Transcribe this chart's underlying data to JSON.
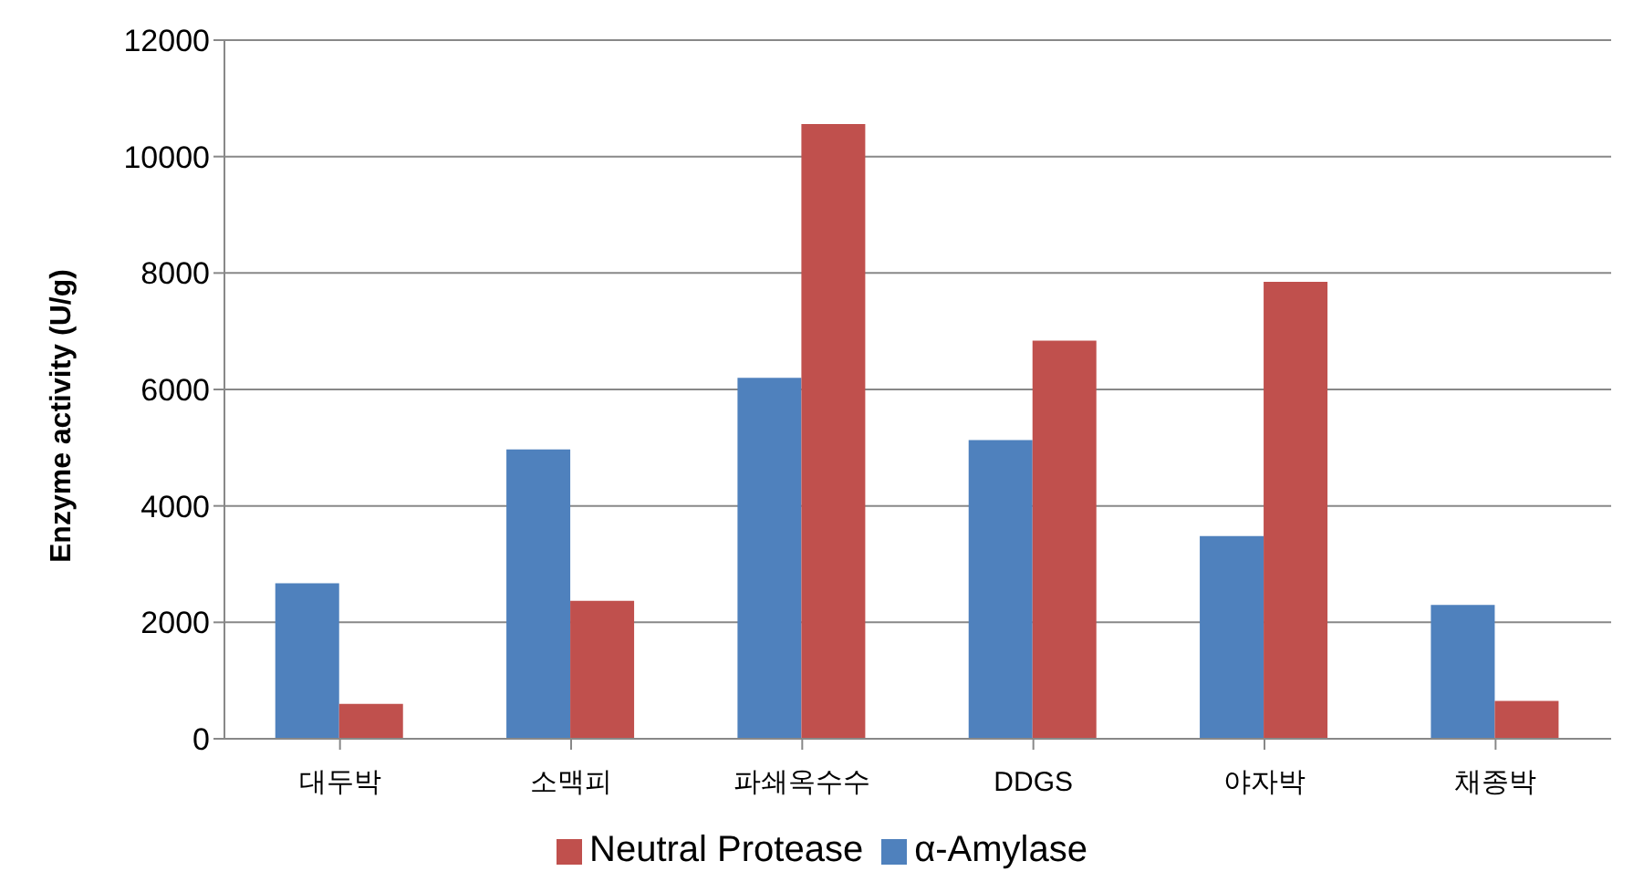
{
  "chart_data": {
    "type": "bar",
    "ylabel": "Enzyme activity (U/g)",
    "categories": [
      "대두박",
      "소맥피",
      "파쇄옥수수",
      "DDGS",
      "야자박",
      "채종박"
    ],
    "series": [
      {
        "name": "α-Amylase",
        "color": "#4f81bd",
        "values": [
          2670,
          4970,
          6200,
          5130,
          3480,
          2300
        ]
      },
      {
        "name": "Neutral Protease",
        "color": "#c0504d",
        "values": [
          600,
          2370,
          10560,
          6840,
          7850,
          650
        ]
      }
    ],
    "ylim": [
      0,
      12000
    ],
    "yticks": [
      0,
      2000,
      4000,
      6000,
      8000,
      10000,
      12000
    ],
    "grid": "y",
    "legend": "bottom"
  }
}
